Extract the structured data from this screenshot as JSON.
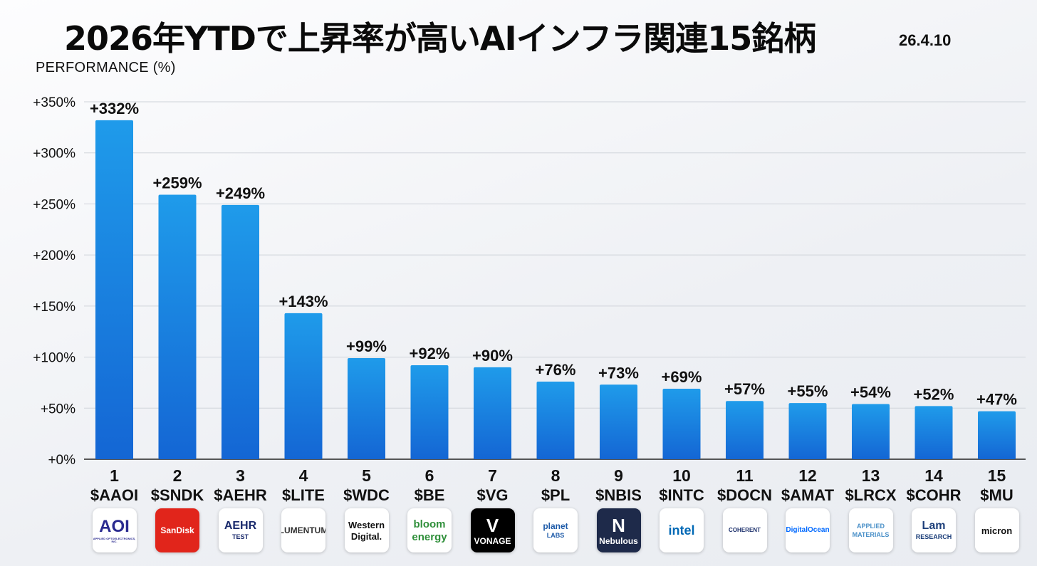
{
  "title": "2026年YTDで上昇率が高いAIインフラ関連15銘柄",
  "date": "26.4.10",
  "chart_data": {
    "type": "bar",
    "title": "2026年YTDで上昇率が高いAIインフラ関連15銘柄",
    "ylabel": "PERFORMANCE (%)",
    "ylim": [
      0,
      350
    ],
    "yticks": [
      0,
      50,
      100,
      150,
      200,
      250,
      300,
      350
    ],
    "ytick_labels": [
      "+0%",
      "+50%",
      "+100%",
      "+150%",
      "+200%",
      "+250%",
      "+300%",
      "+350%"
    ],
    "grid": true,
    "bar_color_top": "#1f9bea",
    "bar_color_bottom": "#1466d4",
    "ranks": [
      "1",
      "2",
      "3",
      "4",
      "5",
      "6",
      "7",
      "8",
      "9",
      "10",
      "11",
      "12",
      "13",
      "14",
      "15"
    ],
    "categories": [
      "$AAOI",
      "$SNDK",
      "$AEHR",
      "$LITE",
      "$WDC",
      "$BE",
      "$VG",
      "$PL",
      "$NBIS",
      "$INTC",
      "$DOCN",
      "$AMAT",
      "$LRCX",
      "$COHR",
      "$MU"
    ],
    "values": [
      332,
      259,
      249,
      143,
      99,
      92,
      90,
      76,
      73,
      69,
      57,
      55,
      54,
      52,
      47
    ],
    "data_labels": [
      "+332%",
      "+259%",
      "+249%",
      "+143%",
      "+99%",
      "+92%",
      "+90%",
      "+76%",
      "+73%",
      "+69%",
      "+57%",
      "+55%",
      "+54%",
      "+52%",
      "+47%"
    ]
  },
  "logos": [
    {
      "name": "aoi-logo",
      "lines": [
        "AOI",
        "APPLIED OPTOELECTRONICS, INC."
      ],
      "bg": "#ffffff",
      "fg": "#2a2a8f"
    },
    {
      "name": "sandisk-logo",
      "lines": [
        "SanDisk"
      ],
      "bg": "#e1251b",
      "fg": "#ffffff"
    },
    {
      "name": "aehr-logo",
      "lines": [
        "AEHR",
        "TEST"
      ],
      "bg": "#ffffff",
      "fg": "#1a2a6c"
    },
    {
      "name": "lumentum-logo",
      "lines": [
        "LUMENTUM"
      ],
      "bg": "#ffffff",
      "fg": "#333333"
    },
    {
      "name": "western-digital-logo",
      "lines": [
        "Western",
        "Digital."
      ],
      "bg": "#ffffff",
      "fg": "#111111"
    },
    {
      "name": "bloom-energy-logo",
      "lines": [
        "bloom",
        "energy"
      ],
      "bg": "#ffffff",
      "fg": "#2f8f3a"
    },
    {
      "name": "vonage-logo",
      "lines": [
        "V",
        "VONAGE"
      ],
      "bg": "#000000",
      "fg": "#ffffff"
    },
    {
      "name": "planet-labs-logo",
      "lines": [
        "planet",
        "LABS"
      ],
      "bg": "#ffffff",
      "fg": "#1d5aa8"
    },
    {
      "name": "nebulous-logo",
      "lines": [
        "N",
        "Nebulous"
      ],
      "bg": "#1e2a4a",
      "fg": "#ffffff"
    },
    {
      "name": "intel-logo",
      "lines": [
        "intel"
      ],
      "bg": "#ffffff",
      "fg": "#0068b5"
    },
    {
      "name": "coherent-logo",
      "lines": [
        "COHERENT"
      ],
      "bg": "#ffffff",
      "fg": "#1b2f6b"
    },
    {
      "name": "digitalocean-logo",
      "lines": [
        "DigitalOcean"
      ],
      "bg": "#ffffff",
      "fg": "#0069ff"
    },
    {
      "name": "applied-materials-logo",
      "lines": [
        "APPLIED",
        "MATERIALS"
      ],
      "bg": "#ffffff",
      "fg": "#4a90c8"
    },
    {
      "name": "lam-research-logo",
      "lines": [
        "Lam",
        "RESEARCH"
      ],
      "bg": "#ffffff",
      "fg": "#1d3f7a"
    },
    {
      "name": "micron-logo",
      "lines": [
        "micron"
      ],
      "bg": "#ffffff",
      "fg": "#111111"
    }
  ]
}
